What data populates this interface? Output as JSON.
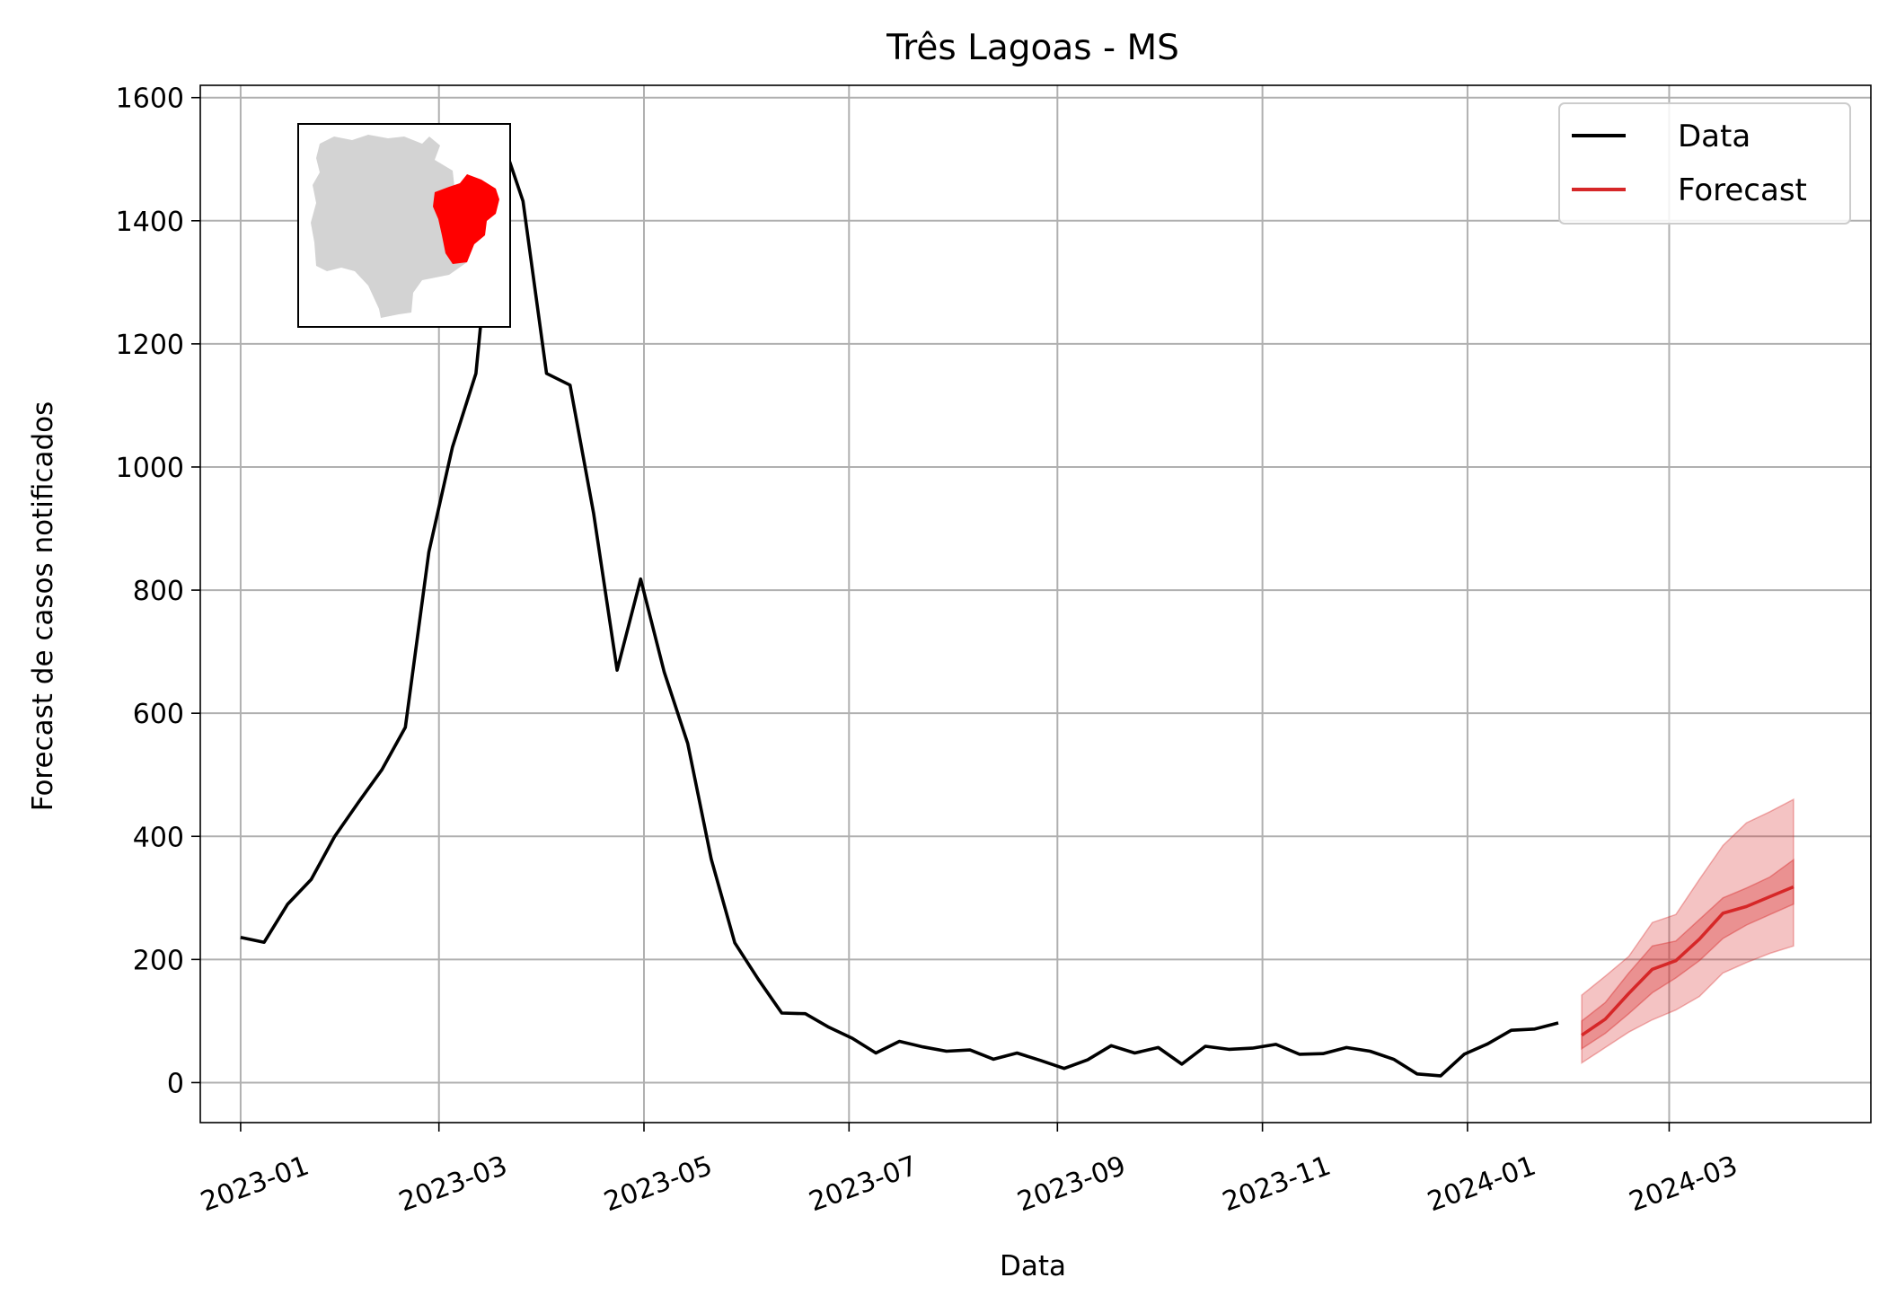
{
  "chart_data": {
    "type": "line",
    "title": "Três Lagoas - MS",
    "xlabel": "Data",
    "ylabel": "Forecast de casos notificados",
    "x_range": [
      "2022-12-20",
      "2024-04-30"
    ],
    "ylim": [
      -65,
      1620
    ],
    "grid": true,
    "legend_position": "top-right",
    "x_ticks": [
      "2023-01-01",
      "2023-03-01",
      "2023-05-01",
      "2023-07-01",
      "2023-09-01",
      "2023-11-01",
      "2024-01-01",
      "2024-03-01"
    ],
    "x_tick_labels": [
      "2023-01",
      "2023-03",
      "2023-05",
      "2023-07",
      "2023-09",
      "2023-11",
      "2024-01",
      "2024-03"
    ],
    "y_ticks": [
      0,
      200,
      400,
      600,
      800,
      1000,
      1200,
      1400,
      1600
    ],
    "y_tick_labels": [
      "0",
      "200",
      "400",
      "600",
      "800",
      "1000",
      "1200",
      "1400",
      "1600"
    ],
    "inset": {
      "description_icon": "state-map-icon",
      "colors": {
        "state": "#d3d3d3",
        "highlight": "#ff0000"
      }
    },
    "series": [
      {
        "name": "Data",
        "color": "#000000",
        "x": [
          "2023-01-01",
          "2023-01-08",
          "2023-01-15",
          "2023-01-22",
          "2023-01-29",
          "2023-02-05",
          "2023-02-12",
          "2023-02-19",
          "2023-02-26",
          "2023-03-05",
          "2023-03-12",
          "2023-03-19",
          "2023-03-26",
          "2023-04-02",
          "2023-04-09",
          "2023-04-16",
          "2023-04-23",
          "2023-04-30",
          "2023-05-07",
          "2023-05-14",
          "2023-05-21",
          "2023-05-28",
          "2023-06-04",
          "2023-06-11",
          "2023-06-18",
          "2023-06-25",
          "2023-07-02",
          "2023-07-09",
          "2023-07-16",
          "2023-07-23",
          "2023-07-30",
          "2023-08-06",
          "2023-08-13",
          "2023-08-20",
          "2023-08-27",
          "2023-09-03",
          "2023-09-10",
          "2023-09-17",
          "2023-09-24",
          "2023-10-01",
          "2023-10-08",
          "2023-10-15",
          "2023-10-22",
          "2023-10-29",
          "2023-11-05",
          "2023-11-12",
          "2023-11-19",
          "2023-11-26",
          "2023-12-03",
          "2023-12-10",
          "2023-12-17",
          "2023-12-24",
          "2023-12-31",
          "2024-01-07",
          "2024-01-14",
          "2024-01-21",
          "2024-01-28"
        ],
        "y": [
          236,
          228,
          290,
          330,
          400,
          455,
          508,
          577,
          862,
          1032,
          1152,
          1545,
          1432,
          1152,
          1133,
          925,
          670,
          818,
          667,
          551,
          363,
          227,
          168,
          113,
          112,
          90,
          72,
          48,
          67,
          58,
          51,
          53,
          38,
          48,
          36,
          23,
          37,
          60,
          48,
          57,
          30,
          59,
          54,
          56,
          62,
          46,
          47,
          57,
          51,
          38,
          14,
          11,
          46,
          63,
          85,
          87,
          97
        ]
      },
      {
        "name": "Forecast",
        "color": "#d62728",
        "x": [
          "2024-02-04",
          "2024-02-11",
          "2024-02-18",
          "2024-02-25",
          "2024-03-03",
          "2024-03-10",
          "2024-03-17",
          "2024-03-24",
          "2024-03-31",
          "2024-04-07"
        ],
        "y": [
          77,
          103,
          145,
          184,
          198,
          233,
          275,
          286,
          302,
          318
        ],
        "inner_lower": [
          55,
          80,
          112,
          146,
          170,
          198,
          234,
          256,
          273,
          290
        ],
        "inner_upper": [
          100,
          130,
          178,
          222,
          230,
          265,
          300,
          316,
          334,
          362
        ],
        "outer_lower": [
          32,
          57,
          82,
          102,
          118,
          140,
          178,
          195,
          210,
          222
        ],
        "outer_upper": [
          142,
          173,
          205,
          260,
          273,
          330,
          385,
          422,
          440,
          460
        ]
      }
    ]
  }
}
